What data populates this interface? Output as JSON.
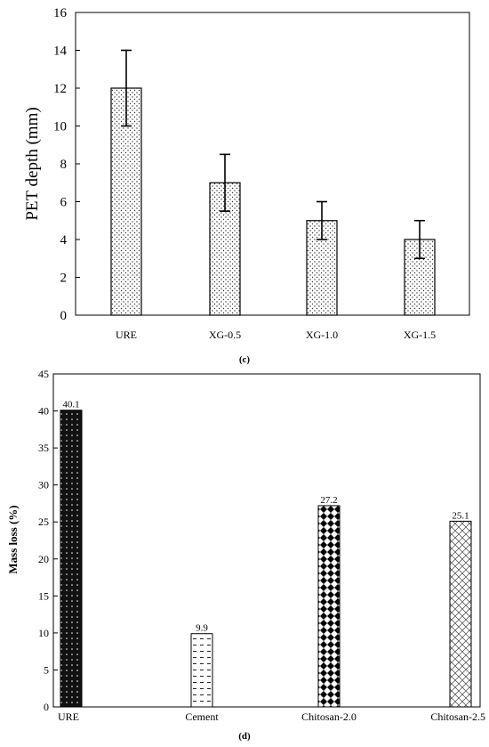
{
  "charts": [
    {
      "caption": "(c)",
      "chart_data": {
        "type": "bar",
        "categories": [
          "URE",
          "XG-0.5",
          "XG-1.0",
          "XG-1.5"
        ],
        "values": [
          12,
          7,
          5,
          4
        ],
        "errors": [
          [
            10,
            14
          ],
          [
            5.5,
            8.5
          ],
          [
            4,
            6
          ],
          [
            3,
            5
          ]
        ],
        "xlabel": "",
        "ylabel": "PET depth (mm)",
        "ylim": [
          0,
          16
        ],
        "yticks": [
          0,
          2,
          4,
          6,
          8,
          10,
          12,
          14,
          16
        ],
        "ytick_labels": [
          "0",
          "2",
          "4",
          "6",
          "8",
          "10",
          "12",
          "14",
          "16"
        ],
        "grid": false,
        "bar_fill": "dot-pattern",
        "data_labels": []
      }
    },
    {
      "caption": "(d)",
      "chart_data": {
        "type": "bar",
        "categories": [
          "URE",
          "Cement",
          "Chitosan-2.0",
          "Chitosan-2.5"
        ],
        "values": [
          40.1,
          9.9,
          27.2,
          25.1
        ],
        "data_labels": [
          "40.1",
          "9.9",
          "27.2",
          "25.1"
        ],
        "xlabel": "",
        "ylabel": "Mass loss (%)",
        "ylim": [
          0,
          45
        ],
        "yticks": [
          0,
          5,
          10,
          15,
          20,
          25,
          30,
          35,
          40,
          45
        ],
        "ytick_labels": [
          "0",
          "5",
          "10",
          "15",
          "20",
          "25",
          "30",
          "35",
          "40",
          "45"
        ],
        "grid": false,
        "bar_fills": [
          "dark-dots",
          "dashes",
          "diamonds",
          "stars"
        ]
      }
    }
  ],
  "colors": {
    "axis": "#000000",
    "background": "#ffffff",
    "dark_bar": "#111111"
  }
}
